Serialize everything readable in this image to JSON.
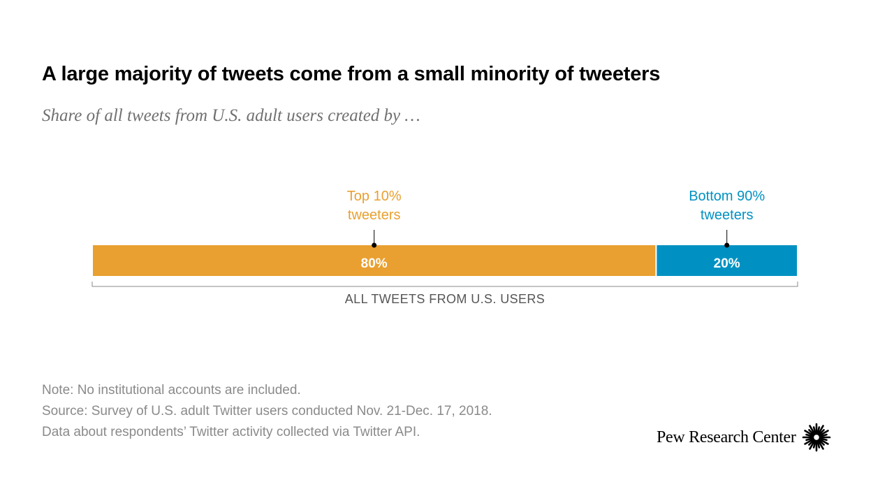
{
  "header": {
    "title": "A large majority of tweets come from a small minority of tweeters",
    "subtitle": "Share of all tweets from U.S. adult users created by …"
  },
  "chart_data": {
    "type": "bar",
    "orientation": "horizontal-stacked",
    "categories": [
      "ALL TWEETS FROM U.S. USERS"
    ],
    "series": [
      {
        "name": "Top 10% tweeters",
        "name_lines": [
          "Top 10%",
          "tweeters"
        ],
        "values": [
          80
        ],
        "label": "80%",
        "color": "#E9A030"
      },
      {
        "name": "Bottom 90% tweeters",
        "name_lines": [
          "Bottom 90%",
          "tweeters"
        ],
        "values": [
          20
        ],
        "label": "20%",
        "color": "#0091C2"
      }
    ],
    "xlim": [
      0,
      100
    ],
    "bracket_label": "ALL TWEETS FROM U.S. USERS",
    "grid": false,
    "legend": "labels above segments"
  },
  "footer": {
    "note": "Note: No institutional accounts are included.",
    "source_line1": "Source: Survey of U.S. adult Twitter users conducted Nov. 21-Dec. 17, 2018.",
    "source_line2": "Data about respondents’ Twitter activity collected via Twitter API.",
    "brand": "Pew Research Center"
  }
}
